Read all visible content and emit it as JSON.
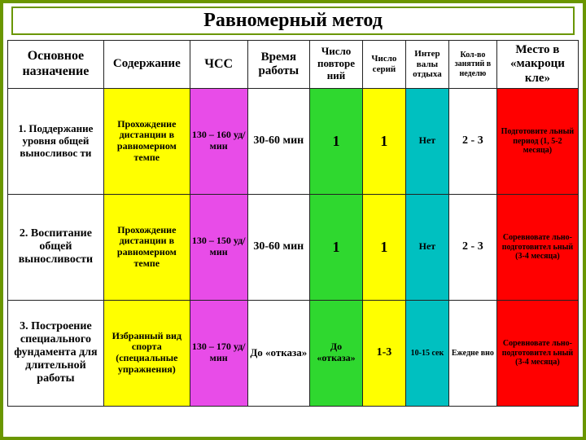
{
  "title": "Равномерный метод",
  "columns": [
    {
      "label": "Основное назначение",
      "width": 100,
      "bg": "#ffffff",
      "fontsize": 16
    },
    {
      "label": "Содержание",
      "width": 90,
      "bg": "#ffffff",
      "fontsize": 15
    },
    {
      "label": "ЧСС",
      "width": 60,
      "bg": "#ffffff",
      "fontsize": 16
    },
    {
      "label": "Время работы",
      "width": 65,
      "bg": "#ffffff",
      "fontsize": 15
    },
    {
      "label": "Число повторе ний",
      "width": 55,
      "bg": "#ffffff",
      "fontsize": 13
    },
    {
      "label": "Число серий",
      "width": 45,
      "bg": "#ffffff",
      "fontsize": 11
    },
    {
      "label": "Интер валы отдыха",
      "width": 45,
      "bg": "#ffffff",
      "fontsize": 11
    },
    {
      "label": "Кол-во занятий в неделю",
      "width": 50,
      "bg": "#ffffff",
      "fontsize": 10
    },
    {
      "label": "Место в «макроци кле»",
      "width": 85,
      "bg": "#ffffff",
      "fontsize": 15
    }
  ],
  "rows": [
    {
      "cells": [
        {
          "text": "1. Поддержание уровня общей выносливос ти",
          "bg": "#ffffff",
          "fs": 13
        },
        {
          "text": "Прохождение дистанции в равномерном темпе",
          "bg": "#ffff00",
          "fs": 12
        },
        {
          "text": "130 – 160 уд/мин",
          "bg": "#e84ce8",
          "fs": 12
        },
        {
          "text": "30-60 мин",
          "bg": "#ffffff",
          "fs": 14
        },
        {
          "text": "1",
          "bg": "#2fd82f",
          "fs": 18
        },
        {
          "text": "1",
          "bg": "#ffff00",
          "fs": 18
        },
        {
          "text": "Нет",
          "bg": "#00c0c0",
          "fs": 12
        },
        {
          "text": "2 - 3",
          "bg": "#ffffff",
          "fs": 14
        },
        {
          "text": "Подготовите льный период (1, 5-2 месяца)",
          "bg": "#ff0000",
          "fs": 10
        }
      ]
    },
    {
      "cells": [
        {
          "text": "2. Воспитание общей выносливости",
          "bg": "#ffffff",
          "fs": 14
        },
        {
          "text": "Прохождение дистанции в равномерном темпе",
          "bg": "#ffff00",
          "fs": 12
        },
        {
          "text": "130 – 150 уд/мин",
          "bg": "#e84ce8",
          "fs": 12
        },
        {
          "text": "30-60 мин",
          "bg": "#ffffff",
          "fs": 14
        },
        {
          "text": "1",
          "bg": "#2fd82f",
          "fs": 18
        },
        {
          "text": "1",
          "bg": "#ffff00",
          "fs": 18
        },
        {
          "text": "Нет",
          "bg": "#00c0c0",
          "fs": 12
        },
        {
          "text": "2 - 3",
          "bg": "#ffffff",
          "fs": 14
        },
        {
          "text": "Соревновате льно- подготовител ьный (3-4 месяца)",
          "bg": "#ff0000",
          "fs": 10
        }
      ]
    },
    {
      "cells": [
        {
          "text": "3. Построение специального фундамента для длительной работы",
          "bg": "#ffffff",
          "fs": 14
        },
        {
          "text": "Избранный вид спорта (специальные упражнения)",
          "bg": "#ffff00",
          "fs": 12
        },
        {
          "text": "130 – 170 уд/мин",
          "bg": "#e84ce8",
          "fs": 12
        },
        {
          "text": "До «отказа»",
          "bg": "#ffffff",
          "fs": 13
        },
        {
          "text": "До «отказа»",
          "bg": "#2fd82f",
          "fs": 12
        },
        {
          "text": "1-3",
          "bg": "#ffff00",
          "fs": 14
        },
        {
          "text": "10-15 сек",
          "bg": "#00c0c0",
          "fs": 10
        },
        {
          "text": "Ежедне вно",
          "bg": "#ffffff",
          "fs": 10
        },
        {
          "text": "Соревновате льно- подготовител ьный (3-4 месяца)",
          "bg": "#ff0000",
          "fs": 10
        }
      ]
    }
  ]
}
